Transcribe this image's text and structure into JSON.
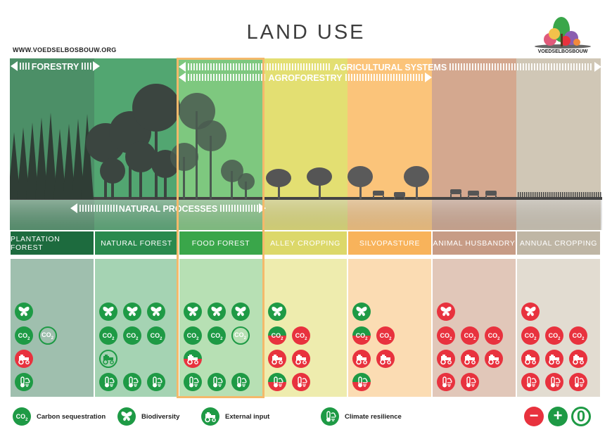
{
  "title": "LAND USE",
  "website": "WWW.VOEDSELBOSBOUW.ORG",
  "brand": "VOEDSELBOSBOUW",
  "arrows": {
    "forestry": "FORESTRY",
    "agricultural_systems": "AGRICULTURAL SYSTEMS",
    "agroforestry": "AGROFORESTRY",
    "natural_processes": "NATURAL PROCESSES"
  },
  "colors": {
    "negative": "#e8323e",
    "positive": "#1e9a45",
    "neutral_ring": "#1e9a45"
  },
  "columns": [
    {
      "name": "PLANTATION FOREST",
      "bg": "#4c8f67",
      "label_bg": "#1d6b3e",
      "panel_bg": "#9fbfae"
    },
    {
      "name": "NATURAL FOREST",
      "bg": "#52a671",
      "label_bg": "#2a8a4e",
      "panel_bg": "#a5d3b3"
    },
    {
      "name": "FOOD FOREST",
      "bg": "#7ec87f",
      "label_bg": "#3aa64a",
      "panel_bg": "#b7e0b4"
    },
    {
      "name": "ALLEY CROPPING",
      "bg": "#e3df72",
      "label_bg": "#dcd86a",
      "panel_bg": "#eeecae"
    },
    {
      "name": "SILVOPASTURE",
      "bg": "#fbc47a",
      "label_bg": "#f8b35b",
      "panel_bg": "#fbdcb3"
    },
    {
      "name": "ANIMAL HUSBANDRY",
      "bg": "#d4a88f",
      "label_bg": "#c79c86",
      "panel_bg": "#e1c7b9"
    },
    {
      "name": "ANNUAL CROPPING",
      "bg": "#d0c7b6",
      "label_bg": "#bfb6a5",
      "panel_bg": "#e2dcd1"
    }
  ],
  "ratings": [
    {
      "biodiversity": [
        "+"
      ],
      "carbon": [
        "+",
        "0"
      ],
      "external_input": [
        "-"
      ],
      "climate": [
        "+"
      ]
    },
    {
      "biodiversity": [
        "+",
        "+",
        "+"
      ],
      "carbon": [
        "+",
        "+",
        "+"
      ],
      "external_input": [
        "0"
      ],
      "climate": [
        "+",
        "+",
        "+"
      ]
    },
    {
      "biodiversity": [
        "+",
        "+",
        "+"
      ],
      "carbon": [
        "+",
        "+",
        "0"
      ],
      "external_input": [
        "+-"
      ],
      "climate": [
        "+",
        "+",
        "+"
      ]
    },
    {
      "biodiversity": [
        "+"
      ],
      "carbon": [
        "+-",
        "-"
      ],
      "external_input": [
        "-",
        "-"
      ],
      "climate": [
        "+-",
        "-"
      ]
    },
    {
      "biodiversity": [
        "+"
      ],
      "carbon": [
        "+-",
        "-"
      ],
      "external_input": [
        "-",
        "-"
      ],
      "climate": [
        "+-"
      ]
    },
    {
      "biodiversity": [
        "-"
      ],
      "carbon": [
        "-",
        "-",
        "-"
      ],
      "external_input": [
        "-",
        "-",
        "-"
      ],
      "climate": [
        "-",
        "-"
      ]
    },
    {
      "biodiversity": [
        "-"
      ],
      "carbon": [
        "-",
        "-",
        "-"
      ],
      "external_input": [
        "-",
        "-",
        "-"
      ],
      "climate": [
        "-",
        "-",
        "-"
      ]
    }
  ],
  "legend": {
    "carbon": "Carbon sequestration",
    "biodiversity": "Biodiversity",
    "external_input": "External input",
    "climate": "Climate resilience",
    "co2_text": "CO",
    "co2_sub": "2"
  },
  "symbols": {
    "minus": "−",
    "plus": "+",
    "zero": "0"
  }
}
